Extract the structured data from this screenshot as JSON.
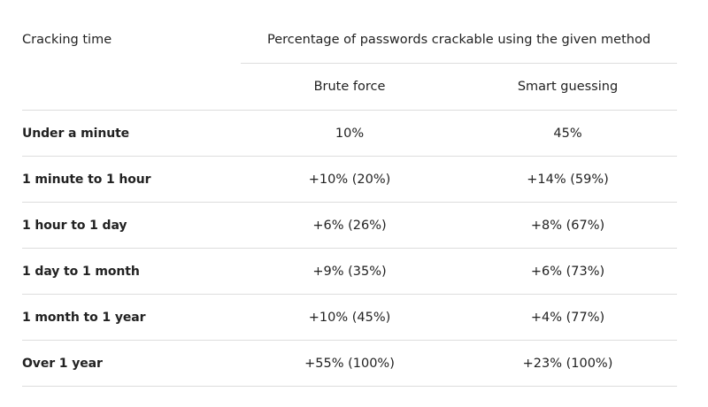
{
  "table": {
    "corner_header": "Cracking time",
    "group_header": "Percentage of passwords crackable using the given method",
    "columns": [
      "Brute force",
      "Smart guessing"
    ],
    "rows": [
      {
        "label": "Under a minute",
        "brute": "10%",
        "smart": "45%"
      },
      {
        "label": "1 minute to 1 hour",
        "brute": "+10% (20%)",
        "smart": "+14% (59%)"
      },
      {
        "label": "1 hour to 1 day",
        "brute": "+6% (26%)",
        "smart": "+8% (67%)"
      },
      {
        "label": "1 day to 1 month",
        "brute": "+9% (35%)",
        "smart": "+6% (73%)"
      },
      {
        "label": "1 month to 1 year",
        "brute": "+10% (45%)",
        "smart": "+4% (77%)"
      },
      {
        "label": "Over 1 year",
        "brute": "+55% (100%)",
        "smart": "+23% (100%)"
      }
    ]
  }
}
